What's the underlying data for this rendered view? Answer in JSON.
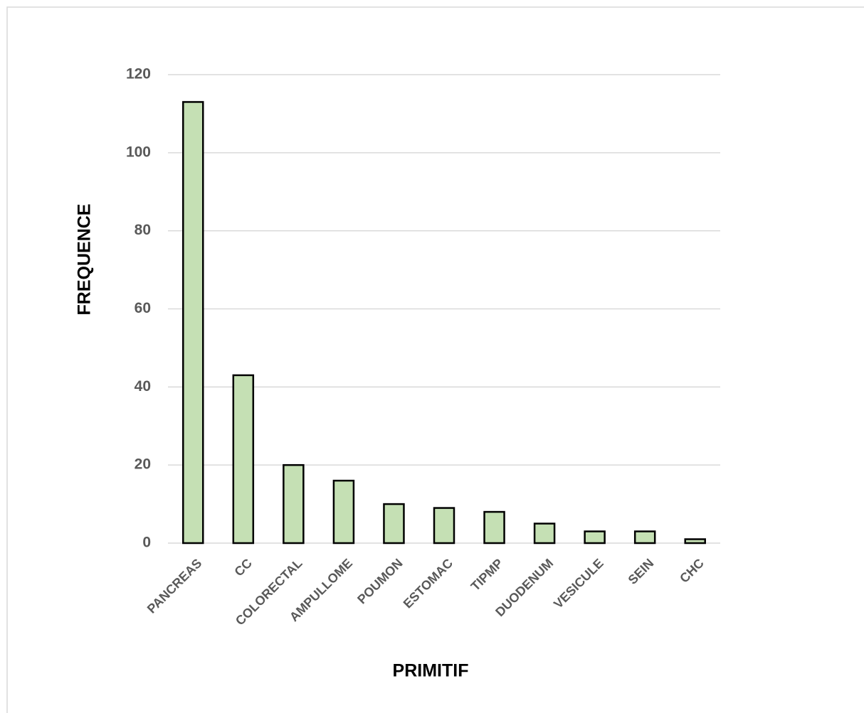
{
  "chart_data": {
    "type": "bar",
    "x_label": "PRIMITIF",
    "y_label": "FREQUENCE",
    "categories": [
      "PANCREAS",
      "CC",
      "COLORECTAL",
      "AMPULLOME",
      "POUMON",
      "ESTOMAC",
      "TIPMP",
      "DUODENUM",
      "VESICULE",
      "SEIN",
      "CHC"
    ],
    "values": [
      113,
      43,
      20,
      16,
      10,
      9,
      8,
      5,
      3,
      3,
      1
    ],
    "color": "#c5e0b4",
    "ylim": [
      0,
      120
    ],
    "yticks": [
      0,
      20,
      40,
      60,
      80,
      100,
      120
    ],
    "grid": true
  }
}
